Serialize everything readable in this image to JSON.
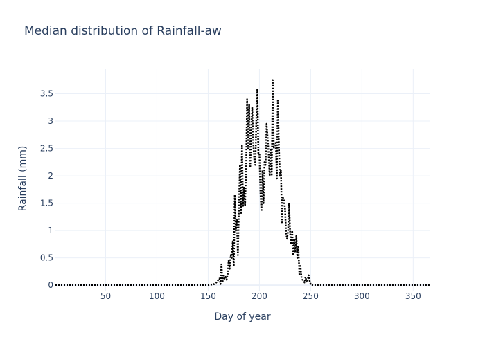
{
  "chart_data": {
    "type": "line",
    "title": "Median distribution of Rainfall-aw",
    "xlabel": "Day of year",
    "ylabel": "Rainfall (mm)",
    "xlim": [
      1,
      366
    ],
    "ylim": [
      -0.1,
      3.95
    ],
    "x_ticks": [
      50,
      100,
      150,
      200,
      250,
      300,
      350
    ],
    "y_ticks": [
      0,
      0.5,
      1,
      1.5,
      2,
      2.5,
      3,
      3.5
    ],
    "y_tick_labels": [
      "0",
      "0.5",
      "1",
      "1.5",
      "2",
      "2.5",
      "3",
      "3.5"
    ],
    "grid": true,
    "legend": "none",
    "line_color": "#000000",
    "line_style": "dotted",
    "series": [
      {
        "x": [
          1,
          150,
          156,
          158,
          160,
          161,
          162,
          163,
          164,
          165,
          166,
          167,
          168,
          169,
          170,
          171,
          172,
          173,
          174,
          175,
          176,
          177,
          178,
          179,
          180,
          181,
          182,
          183,
          184,
          185,
          186,
          187,
          188,
          189,
          190,
          191,
          192,
          193,
          194,
          195,
          196,
          197,
          198,
          199,
          200,
          201,
          202,
          203,
          204,
          205,
          206,
          207,
          208,
          209,
          210,
          211,
          212,
          213,
          214,
          215,
          216,
          217,
          218,
          219,
          220,
          221,
          222,
          223,
          224,
          225,
          226,
          227,
          228,
          229,
          230,
          231,
          232,
          233,
          234,
          235,
          236,
          237,
          238,
          239,
          240,
          241,
          242,
          243,
          244,
          245,
          246,
          247,
          248,
          249,
          250,
          251,
          252,
          253,
          254,
          255,
          256,
          257,
          258,
          259,
          260,
          261,
          262,
          263,
          264,
          265,
          266,
          267,
          268,
          269,
          270,
          272,
          366
        ],
        "values": [
          0,
          0,
          0.02,
          0.05,
          0.1,
          0.12,
          0.02,
          0.38,
          0.05,
          0.2,
          0.12,
          0.15,
          0.1,
          0.2,
          0.45,
          0.3,
          0.55,
          0.5,
          0.8,
          0.35,
          1.65,
          1.0,
          1.2,
          0.55,
          1.4,
          2.2,
          1.3,
          2.55,
          1.45,
          1.8,
          1.45,
          2.1,
          3.4,
          2.5,
          3.3,
          2.15,
          2.8,
          3.25,
          2.6,
          2.3,
          2.2,
          3.0,
          3.6,
          2.4,
          2.4,
          1.7,
          1.35,
          2.1,
          1.5,
          2.25,
          2.2,
          2.95,
          2.7,
          2.4,
          2.0,
          2.5,
          2.0,
          3.75,
          2.5,
          2.6,
          2.6,
          1.95,
          3.4,
          2.55,
          2.0,
          2.1,
          1.15,
          1.6,
          1.55,
          1.4,
          0.95,
          0.85,
          1.0,
          1.5,
          0.95,
          0.75,
          1.0,
          0.55,
          0.85,
          0.6,
          0.9,
          0.5,
          0.7,
          0.2,
          0.35,
          0.15,
          0.1,
          0.08,
          0.05,
          0.15,
          0.05,
          0.1,
          0.18,
          0.08,
          0.02,
          0.02,
          0.0,
          0.0,
          0.0,
          0.0,
          0.0,
          0.0,
          0.0,
          0.0,
          0.0,
          0.0,
          0.0,
          0.0,
          0.0,
          0.0,
          0.0,
          0.0,
          0.0,
          0.0,
          0.0,
          0.0,
          0
        ]
      }
    ]
  }
}
